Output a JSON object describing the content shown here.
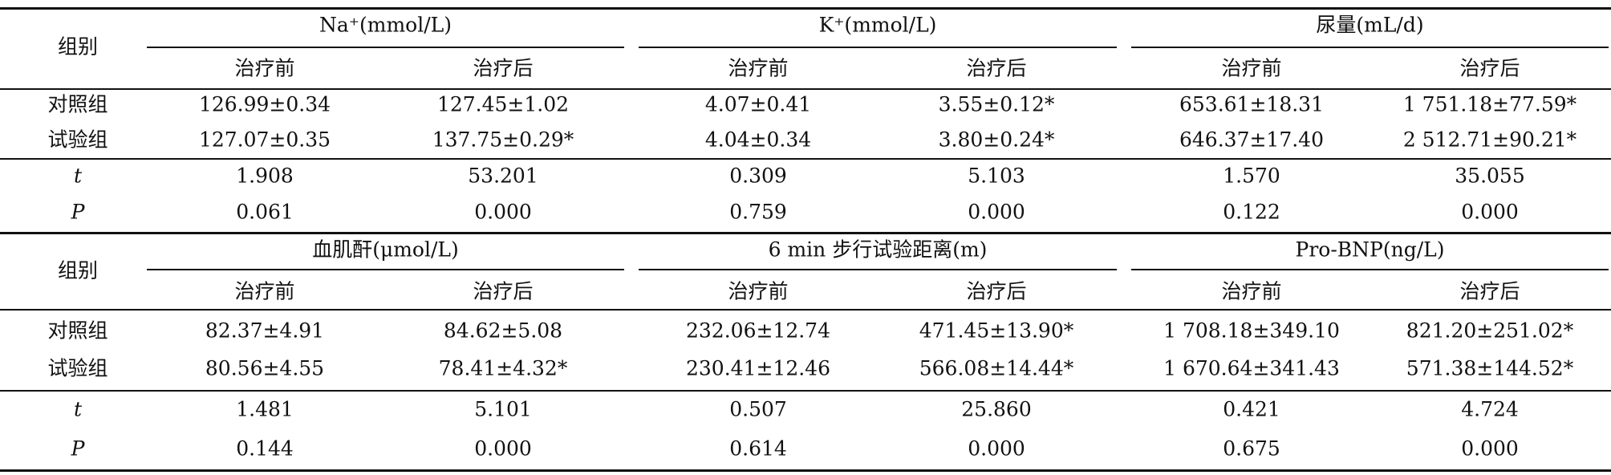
{
  "table": {
    "blocks": [
      {
        "group_label": "组别",
        "columns": [
          {
            "label": "Na⁺(mmol/L)",
            "sub": [
              "治疗前",
              "治疗后"
            ]
          },
          {
            "label": "K⁺(mmol/L)",
            "sub": [
              "治疗前",
              "治疗后"
            ]
          },
          {
            "label": "尿量(mL/d)",
            "sub": [
              "治疗前",
              "治疗后"
            ]
          }
        ],
        "rows": [
          {
            "label": "对照组",
            "cells": [
              "126.99±0.34",
              "127.45±1.02",
              "4.07±0.41",
              "3.55±0.12*",
              "653.61±18.31",
              "1 751.18±77.59*"
            ]
          },
          {
            "label": "试验组",
            "cells": [
              "127.07±0.35",
              "137.75±0.29*",
              "4.04±0.34",
              "3.80±0.24*",
              "646.37±17.40",
              "2 512.71±90.21*"
            ]
          },
          {
            "label": "t",
            "cells": [
              "1.908",
              "53.201",
              "0.309",
              "5.103",
              "1.570",
              "35.055"
            ]
          },
          {
            "label": "P",
            "cells": [
              "0.061",
              "0.000",
              "0.759",
              "0.000",
              "0.122",
              "0.000"
            ]
          }
        ]
      },
      {
        "group_label": "组别",
        "columns": [
          {
            "label": "血肌酐(μmol/L)",
            "sub": [
              "治疗前",
              "治疗后"
            ]
          },
          {
            "label": "6 min 步行试验距离(m)",
            "sub": [
              "治疗前",
              "治疗后"
            ]
          },
          {
            "label": "Pro-BNP(ng/L)",
            "sub": [
              "治疗前",
              "治疗后"
            ]
          }
        ],
        "rows": [
          {
            "label": "对照组",
            "cells": [
              "82.37±4.91",
              "84.62±5.08",
              "232.06±12.74",
              "471.45±13.90*",
              "1 708.18±349.10",
              "821.20±251.02*"
            ]
          },
          {
            "label": "试验组",
            "cells": [
              "80.56±4.55",
              "78.41±4.32*",
              "230.41±12.46",
              "566.08±14.44*",
              "1 670.64±341.43",
              "571.38±144.52*"
            ]
          },
          {
            "label": "t",
            "cells": [
              "1.481",
              "5.101",
              "0.507",
              "25.860",
              "0.421",
              "4.724"
            ]
          },
          {
            "label": "P",
            "cells": [
              "0.144",
              "0.000",
              "0.614",
              "0.000",
              "0.675",
              "0.000"
            ]
          }
        ]
      }
    ]
  }
}
